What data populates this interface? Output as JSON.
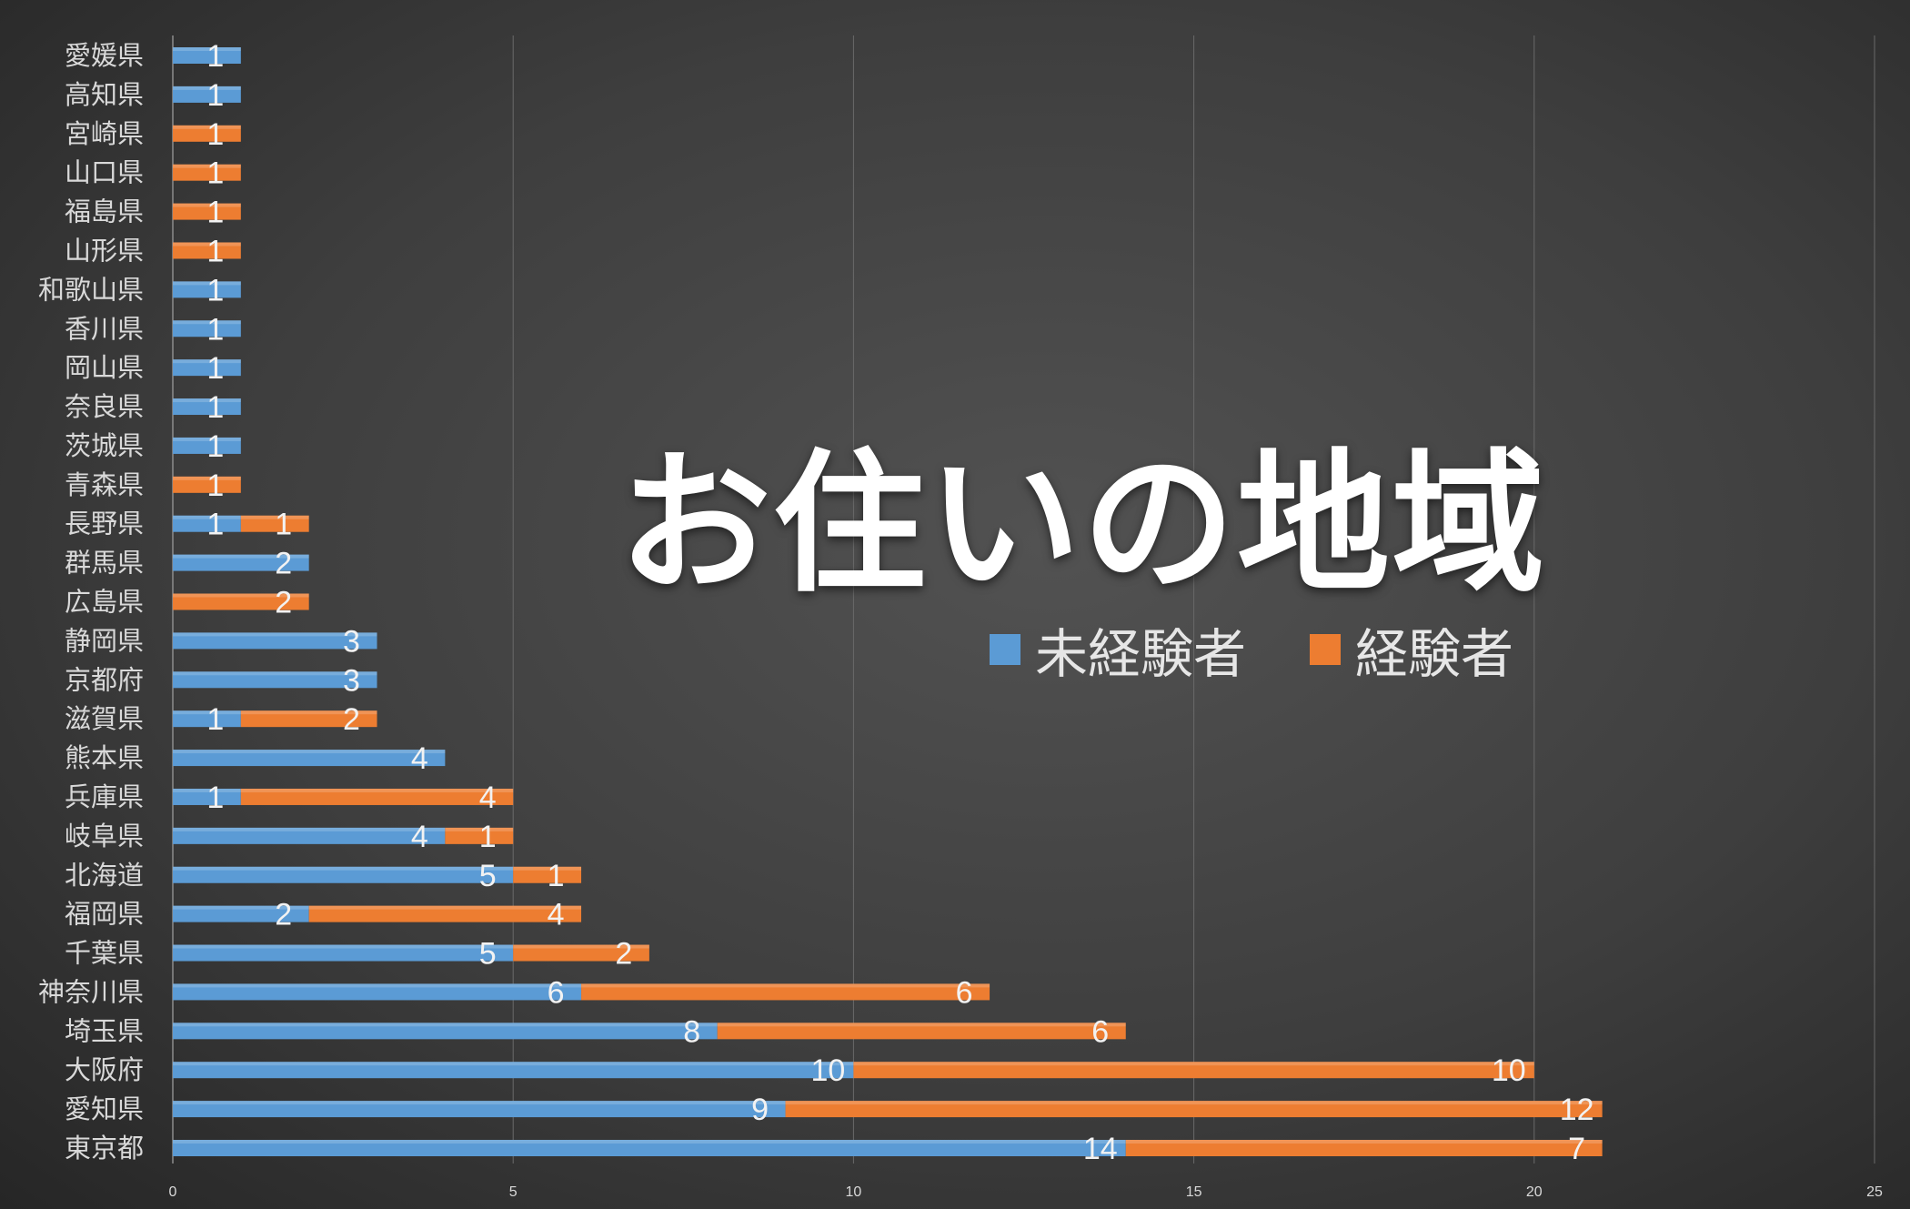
{
  "chart_data": {
    "type": "bar",
    "orientation": "horizontal",
    "stacked": true,
    "title": "お住いの地域",
    "categories": [
      "愛媛県",
      "高知県",
      "宮崎県",
      "山口県",
      "福島県",
      "山形県",
      "和歌山県",
      "香川県",
      "岡山県",
      "奈良県",
      "茨城県",
      "青森県",
      "長野県",
      "群馬県",
      "広島県",
      "静岡県",
      "京都府",
      "滋賀県",
      "熊本県",
      "兵庫県",
      "岐阜県",
      "北海道",
      "福岡県",
      "千葉県",
      "神奈川県",
      "埼玉県",
      "大阪府",
      "愛知県",
      "東京都"
    ],
    "series": [
      {
        "name": "未経験者",
        "color": "#5b9bd5",
        "values": [
          1,
          1,
          0,
          0,
          0,
          0,
          1,
          1,
          1,
          1,
          1,
          0,
          1,
          2,
          0,
          3,
          3,
          1,
          4,
          1,
          4,
          5,
          2,
          5,
          6,
          8,
          10,
          9,
          14
        ]
      },
      {
        "name": "経験者",
        "color": "#ed7d31",
        "values": [
          0,
          0,
          1,
          1,
          1,
          1,
          0,
          0,
          0,
          0,
          0,
          1,
          1,
          0,
          2,
          0,
          0,
          2,
          0,
          4,
          1,
          1,
          4,
          2,
          6,
          6,
          10,
          12,
          7
        ]
      }
    ],
    "xlim": [
      0,
      25
    ],
    "xticks": [
      0,
      5,
      10,
      15,
      20,
      25
    ],
    "grid": true,
    "legend_position": "center-right"
  }
}
